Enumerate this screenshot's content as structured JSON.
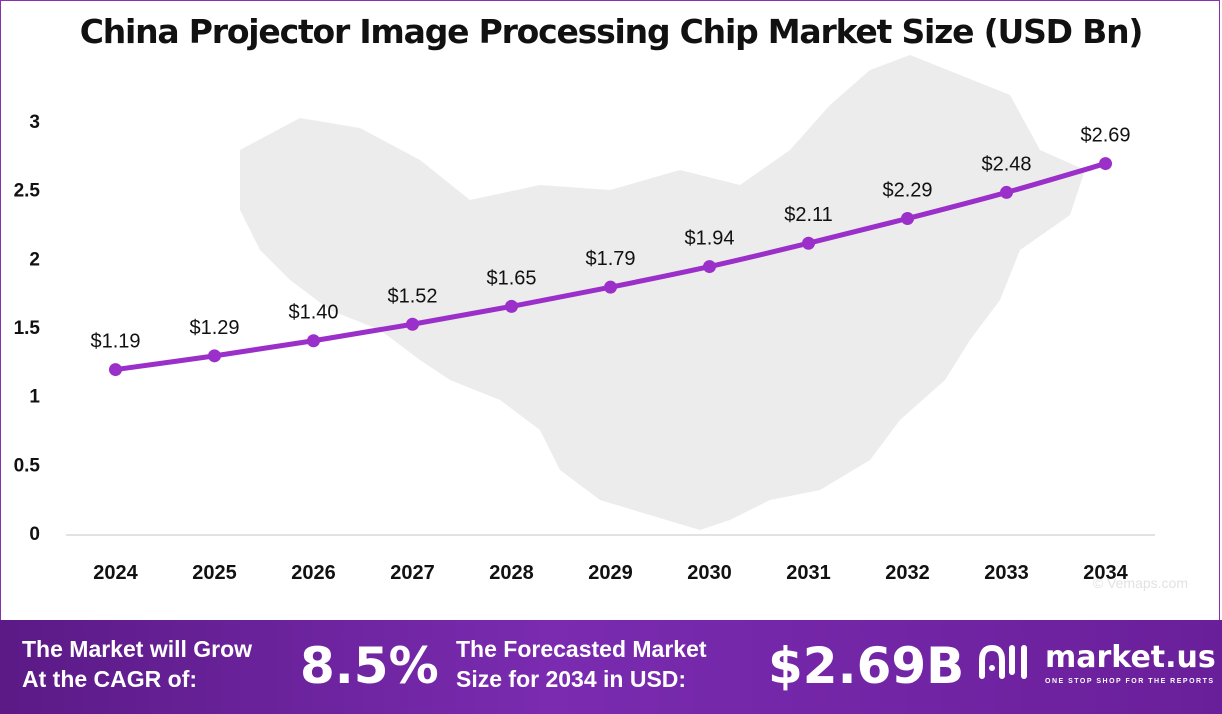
{
  "chart_data": {
    "type": "line",
    "title": "China Projector Image Processing Chip Market Size (USD Bn)",
    "categories": [
      "2024",
      "2025",
      "2026",
      "2027",
      "2028",
      "2029",
      "2030",
      "2031",
      "2032",
      "2033",
      "2034"
    ],
    "values": [
      1.19,
      1.29,
      1.4,
      1.52,
      1.65,
      1.79,
      1.94,
      2.11,
      2.29,
      2.48,
      2.69
    ],
    "data_labels": [
      "$1.19",
      "$1.29",
      "$1.40",
      "$1.52",
      "$1.65",
      "$1.79",
      "$1.94",
      "$2.11",
      "$2.29",
      "$2.48",
      "$2.69"
    ],
    "y_ticks": [
      "0",
      "0.5",
      "1",
      "1.5",
      "2",
      "2.5",
      "3"
    ],
    "ylim": [
      0,
      3
    ],
    "grid": false,
    "line_color": "#9b2fc9"
  },
  "watermark": "© Vemaps.com",
  "footer": {
    "cagr_label_line1": "The Market will Grow",
    "cagr_label_line2": "At the CAGR of:",
    "cagr_value": "8.5%",
    "forecast_label_line1": "The Forecasted Market",
    "forecast_label_line2": "Size for 2034 in USD:",
    "forecast_value": "$2.69B",
    "brand_name": "market.us",
    "brand_tagline": "ONE STOP SHOP FOR THE REPORTS"
  }
}
